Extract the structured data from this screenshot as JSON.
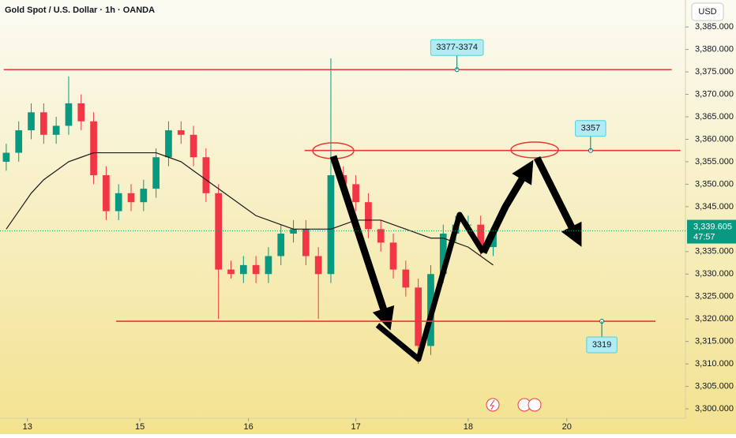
{
  "chart_data": {
    "type": "candlestick",
    "title": "Gold Spot / U.S. Dollar · 1h · OANDA",
    "currency_button": "USD",
    "x": [
      0,
      1,
      2,
      3,
      4,
      5,
      6,
      7,
      8,
      9,
      10,
      11,
      12,
      13,
      14,
      15,
      16,
      17,
      18,
      19,
      20,
      21,
      22,
      23,
      24,
      25,
      26,
      27,
      28,
      29,
      30,
      31,
      32,
      33,
      34,
      35,
      36,
      37,
      38,
      39
    ],
    "open": [
      3355,
      3357,
      3362,
      3366,
      3361,
      3363,
      3368,
      3364,
      3352,
      3344,
      3348,
      3346,
      3349,
      3356,
      3362,
      3361,
      3356,
      3348,
      3331,
      3330,
      3332,
      3330,
      3334,
      3339,
      3340,
      3334,
      3330,
      3352,
      3350,
      3346,
      3340,
      3337,
      3331,
      3327,
      3314,
      3330,
      3339,
      3341,
      3341,
      3336
    ],
    "high": [
      3359,
      3364,
      3368,
      3368,
      3365,
      3374,
      3370,
      3366,
      3354,
      3350,
      3350,
      3351,
      3358,
      3364,
      3364,
      3363,
      3358,
      3350,
      3333,
      3334,
      3334,
      3336,
      3341,
      3342,
      3342,
      3336,
      3378,
      3354,
      3352,
      3348,
      3342,
      3339,
      3333,
      3329,
      3332,
      3341,
      3343,
      3343,
      3343,
      3341
    ],
    "low": [
      3353,
      3355,
      3360,
      3359,
      3359,
      3361,
      3362,
      3350,
      3342,
      3342,
      3344,
      3344,
      3347,
      3354,
      3359,
      3354,
      3346,
      3320,
      3329,
      3328,
      3328,
      3328,
      3332,
      3337,
      3332,
      3320,
      3328,
      3348,
      3344,
      3338,
      3335,
      3329,
      3325,
      3310,
      3312,
      3328,
      3337,
      3339,
      3334,
      3334
    ],
    "close": [
      3357,
      3362,
      3366,
      3361,
      3363,
      3368,
      3364,
      3352,
      3344,
      3348,
      3346,
      3349,
      3356,
      3362,
      3361,
      3356,
      3348,
      3331,
      3330,
      3332,
      3330,
      3334,
      3339,
      3340,
      3334,
      3330,
      3352,
      3350,
      3346,
      3340,
      3337,
      3331,
      3327,
      3314,
      3330,
      3339,
      3341,
      3341,
      3336,
      3339.6
    ],
    "up_color": "#089981",
    "down_color": "#f23645",
    "moving_average": {
      "color": "#1a1a1a",
      "values": [
        3340,
        3344,
        3348,
        3351,
        3353,
        3355,
        3356,
        3357,
        3357,
        3357,
        3357,
        3357,
        3357,
        3356,
        3355,
        3353,
        3351,
        3349,
        3347,
        3345,
        3343,
        3342,
        3341,
        3340,
        3340,
        3340,
        3340,
        3341,
        3342,
        3342,
        3342,
        3341,
        3340,
        3339,
        3338,
        3338,
        3337,
        3336,
        3334,
        3332
      ]
    },
    "levels": [
      {
        "value": 3375.5,
        "label": "3377-3374",
        "from": -0.2,
        "to": 53.3,
        "label_at": 36.1
      },
      {
        "value": 3357.5,
        "label": "3357",
        "from": 23.9,
        "to": 54,
        "label_at": 46.8
      },
      {
        "value": 3319.5,
        "label": "3319",
        "from": 8.8,
        "to": 52,
        "label_at": 47.7
      }
    ],
    "level_color": "#e53935",
    "last_price": {
      "value": 3339.605,
      "value_label": "3,339.605",
      "countdown": "47:57"
    },
    "xlim": [
      -0.5,
      54.4
    ],
    "xticks": [
      {
        "value": 1.7,
        "label": "13"
      },
      {
        "value": 10.7,
        "label": "15"
      },
      {
        "value": 19.4,
        "label": "16"
      },
      {
        "value": 28,
        "label": "17"
      },
      {
        "value": 37,
        "label": "18"
      },
      {
        "value": 44.9,
        "label": "20"
      }
    ],
    "ylim": [
      3297.9,
      3391
    ],
    "yticks": [
      {
        "value": 3300,
        "label": "3,300.000"
      },
      {
        "value": 3305,
        "label": "3,305.000"
      },
      {
        "value": 3310,
        "label": "3,310.000"
      },
      {
        "value": 3315,
        "label": "3,315.000"
      },
      {
        "value": 3320,
        "label": "3,320.000"
      },
      {
        "value": 3325,
        "label": "3,325.000"
      },
      {
        "value": 3330,
        "label": "3,330.000"
      },
      {
        "value": 3335,
        "label": "3,335.000"
      },
      {
        "value": 3345,
        "label": "3,345.000"
      },
      {
        "value": 3350,
        "label": "3,350.000"
      },
      {
        "value": 3355,
        "label": "3,355.000"
      },
      {
        "value": 3360,
        "label": "3,360.000"
      },
      {
        "value": 3365,
        "label": "3,365.000"
      },
      {
        "value": 3370,
        "label": "3,370.000"
      },
      {
        "value": 3375,
        "label": "3,375.000"
      },
      {
        "value": 3380,
        "label": "3,380.000"
      },
      {
        "value": 3385,
        "label": "3,385.000"
      }
    ]
  }
}
